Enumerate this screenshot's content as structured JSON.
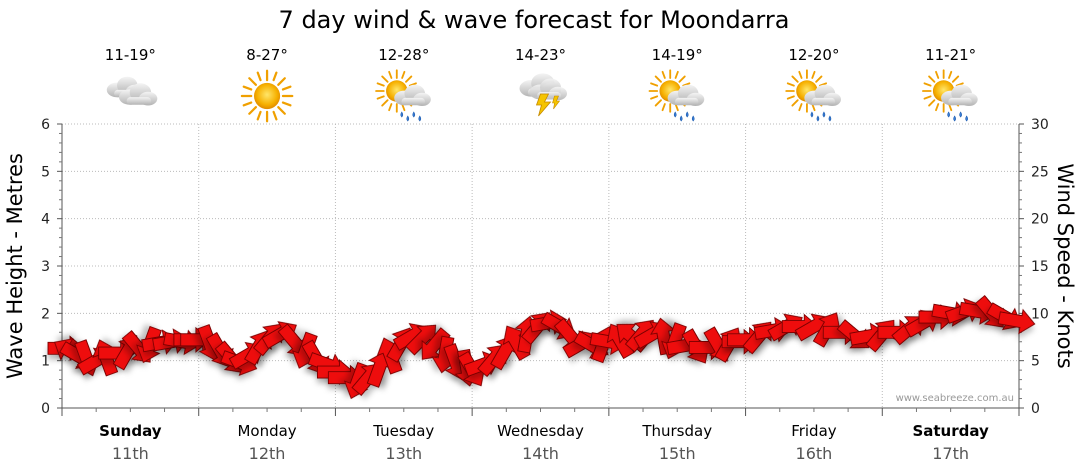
{
  "chart_data": {
    "type": "line",
    "title": "7 day wind & wave forecast for Moondarra",
    "ylabel_left": "Wave Height - Metres",
    "ylabel_right": "Wind Speed - Knots",
    "ylim_left": [
      0,
      6
    ],
    "ylim_right": [
      0,
      30
    ],
    "yticks_left": [
      "0",
      "1",
      "2",
      "3",
      "4",
      "5",
      "6"
    ],
    "yticks_right": [
      "0",
      "5",
      "10",
      "15",
      "20",
      "25",
      "30"
    ],
    "grid": true,
    "credit": "www.seabreeze.com.au",
    "days": [
      {
        "day": "Sunday",
        "date": "11th",
        "temp": "11-19°",
        "icon": "cloud-icon",
        "bold": true
      },
      {
        "day": "Monday",
        "date": "12th",
        "temp": "8-27°",
        "icon": "sun-icon",
        "bold": false
      },
      {
        "day": "Tuesday",
        "date": "13th",
        "temp": "12-28°",
        "icon": "sun-rain-icon",
        "bold": false
      },
      {
        "day": "Wednesday",
        "date": "14th",
        "temp": "14-23°",
        "icon": "thunderstorm-icon",
        "bold": false
      },
      {
        "day": "Thursday",
        "date": "15th",
        "temp": "14-19°",
        "icon": "sun-rain-icon",
        "bold": false
      },
      {
        "day": "Friday",
        "date": "16th",
        "temp": "12-20°",
        "icon": "sun-rain-icon",
        "bold": false
      },
      {
        "day": "Saturday",
        "date": "17th",
        "temp": "11-21°",
        "icon": "sun-rain-icon",
        "bold": true
      }
    ],
    "wind_series": {
      "name": "",
      "x_days": [
        0.0,
        0.06,
        0.12,
        0.18,
        0.25,
        0.32,
        0.4,
        0.48,
        0.56,
        0.64,
        0.72,
        0.8,
        0.88,
        0.95,
        1.0,
        1.08,
        1.16,
        1.24,
        1.3,
        1.36,
        1.44,
        1.52,
        1.6,
        1.7,
        1.78,
        1.86,
        1.94,
        2.0,
        2.08,
        2.16,
        2.24,
        2.32,
        2.4,
        2.48,
        2.56,
        2.64,
        2.72,
        2.8,
        2.88,
        2.96,
        3.0,
        3.08,
        3.16,
        3.24,
        3.32,
        3.4,
        3.48,
        3.56,
        3.64,
        3.72,
        3.8,
        3.88,
        3.96,
        4.0,
        4.08,
        4.16,
        4.24,
        4.32,
        4.4,
        4.48,
        4.56,
        4.64,
        4.72,
        4.8,
        4.88,
        4.96,
        5.0,
        5.1,
        5.2,
        5.3,
        5.4,
        5.5,
        5.6,
        5.7,
        5.8,
        5.9,
        6.0,
        6.1,
        6.2,
        6.3,
        6.4,
        6.5,
        6.6,
        6.7,
        6.8,
        6.9,
        6.98
      ],
      "knots": [
        6.3,
        6.0,
        5.5,
        5.2,
        5.0,
        5.4,
        5.8,
        6.0,
        6.3,
        6.6,
        6.9,
        7.0,
        7.0,
        7.2,
        7.2,
        6.8,
        6.0,
        5.2,
        4.8,
        5.6,
        6.5,
        7.4,
        7.8,
        7.0,
        6.0,
        5.2,
        4.6,
        3.8,
        3.2,
        2.8,
        3.2,
        4.2,
        5.6,
        6.8,
        7.6,
        7.4,
        6.6,
        5.6,
        4.8,
        4.2,
        4.0,
        4.6,
        5.2,
        6.0,
        7.0,
        7.8,
        8.6,
        9.0,
        8.6,
        7.6,
        6.8,
        6.6,
        6.8,
        7.0,
        7.2,
        7.6,
        7.8,
        7.8,
        7.6,
        7.0,
        6.6,
        6.4,
        6.4,
        6.6,
        6.8,
        7.0,
        7.2,
        7.6,
        8.2,
        8.6,
        8.6,
        8.6,
        8.4,
        8.0,
        7.6,
        7.6,
        7.8,
        8.0,
        8.4,
        9.0,
        9.6,
        10.0,
        10.2,
        10.2,
        10.0,
        9.6,
        9.2
      ],
      "direction_deg": [
        90,
        300,
        120,
        160,
        60,
        340,
        90,
        30,
        140,
        200,
        80,
        80,
        100,
        90,
        90,
        160,
        150,
        140,
        110,
        60,
        30,
        40,
        60,
        140,
        200,
        150,
        110,
        90,
        90,
        200,
        40,
        20,
        340,
        30,
        60,
        45,
        220,
        190,
        160,
        170,
        150,
        70,
        40,
        30,
        330,
        10,
        40,
        80,
        120,
        140,
        60,
        120,
        20,
        100,
        330,
        310,
        40,
        60,
        350,
        200,
        80,
        150,
        90,
        150,
        30,
        90,
        90,
        40,
        80,
        60,
        90,
        60,
        30,
        90,
        130,
        80,
        40,
        90,
        50,
        60,
        90,
        100,
        70,
        100,
        140,
        120,
        100
      ]
    }
  }
}
